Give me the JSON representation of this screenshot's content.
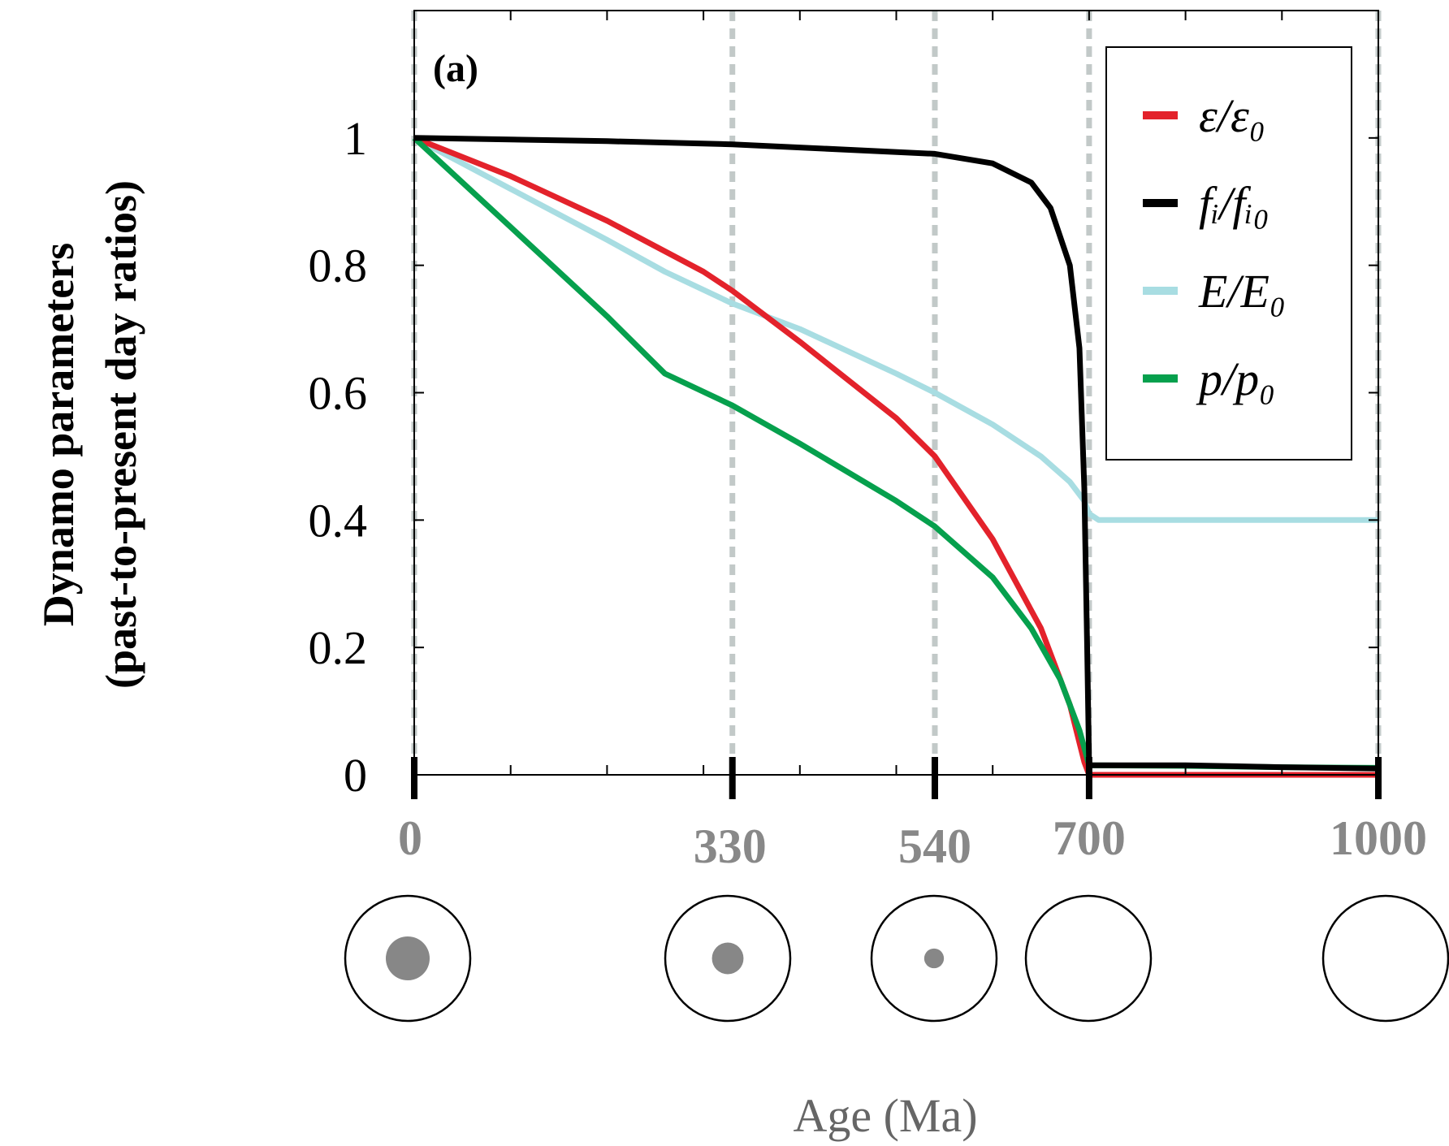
{
  "chart_data": {
    "type": "line",
    "panel_label": "(a)",
    "ylabel_lines": [
      "Dynamo parameters",
      "(past-to-present day ratios)"
    ],
    "xlabel": "Age (Ma)",
    "xlim": [
      0,
      1000
    ],
    "ylim": [
      0,
      1.2
    ],
    "y_ticks": [
      0,
      0.2,
      0.4,
      0.6,
      0.8,
      1
    ],
    "y_tick_labels": [
      "0",
      "0.2",
      "0.4",
      "0.6",
      "0.8",
      "1"
    ],
    "x_minor_ticks": [
      100,
      200,
      300,
      400,
      500,
      600,
      700,
      800,
      900
    ],
    "x_major_ticks": [
      0,
      330,
      540,
      700,
      1000
    ],
    "x_major_tick_labels": [
      "0",
      "330",
      "540",
      "700",
      "1000"
    ],
    "vertical_reference_lines": [
      0,
      330,
      540,
      700,
      1000
    ],
    "grid": false,
    "legend_position": "top-right",
    "legend": [
      {
        "series": "epsilon",
        "label": "ε/ε₀"
      },
      {
        "series": "fi",
        "label": "fᵢ/fᵢ₀"
      },
      {
        "series": "E",
        "label": "E/E₀"
      },
      {
        "series": "p",
        "label": "p/p₀"
      }
    ],
    "inner_core_size": [
      {
        "age": 0,
        "relative_inner_core_radius": 1.0
      },
      {
        "age": 330,
        "relative_inner_core_radius": 0.72
      },
      {
        "age": 540,
        "relative_inner_core_radius": 0.45
      },
      {
        "age": 700,
        "relative_inner_core_radius": 0
      },
      {
        "age": 1000,
        "relative_inner_core_radius": 0
      }
    ],
    "series": [
      {
        "id": "epsilon",
        "color": "#e3222b",
        "x": [
          0,
          100,
          200,
          300,
          330,
          400,
          500,
          540,
          600,
          650,
          680,
          695,
          700,
          800,
          900,
          1000
        ],
        "y": [
          1.0,
          0.94,
          0.87,
          0.79,
          0.76,
          0.68,
          0.56,
          0.5,
          0.37,
          0.23,
          0.11,
          0.02,
          0.0,
          0.0,
          0.0,
          0.0
        ]
      },
      {
        "id": "fi",
        "color": "#000000",
        "x": [
          0,
          200,
          330,
          540,
          600,
          640,
          660,
          680,
          690,
          695,
          698,
          700,
          800,
          900,
          1000
        ],
        "y": [
          1.0,
          0.995,
          0.99,
          0.975,
          0.96,
          0.93,
          0.89,
          0.8,
          0.67,
          0.45,
          0.2,
          0.015,
          0.015,
          0.012,
          0.01
        ]
      },
      {
        "id": "E",
        "color": "#a8dde2",
        "x": [
          0,
          100,
          200,
          260,
          330,
          400,
          500,
          540,
          600,
          650,
          680,
          695,
          700,
          710,
          1000
        ],
        "y": [
          1.0,
          0.92,
          0.84,
          0.79,
          0.74,
          0.7,
          0.63,
          0.6,
          0.55,
          0.5,
          0.46,
          0.43,
          0.41,
          0.4,
          0.4
        ]
      },
      {
        "id": "p",
        "color": "#06a04d",
        "x": [
          0,
          100,
          200,
          260,
          330,
          400,
          500,
          540,
          600,
          640,
          670,
          690,
          700,
          800,
          900,
          1000
        ],
        "y": [
          1.0,
          0.86,
          0.72,
          0.63,
          0.58,
          0.52,
          0.43,
          0.39,
          0.31,
          0.23,
          0.15,
          0.07,
          0.015,
          0.014,
          0.012,
          0.011
        ]
      }
    ]
  }
}
